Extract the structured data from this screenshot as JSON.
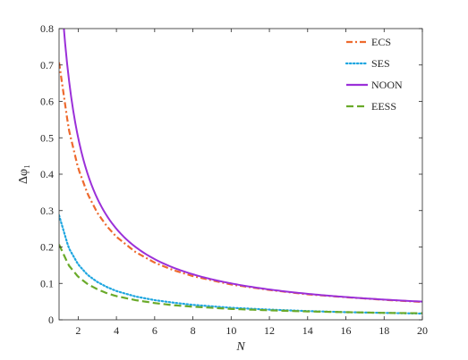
{
  "chart_data": {
    "type": "line",
    "xlabel": "N",
    "ylabel": "Δφ₁",
    "xlim": [
      1,
      20
    ],
    "ylim": [
      0,
      0.8
    ],
    "xticks": [
      2,
      4,
      6,
      8,
      10,
      12,
      14,
      16,
      18,
      20
    ],
    "yticks": [
      0,
      0.1,
      0.2,
      0.3,
      0.4,
      0.5,
      0.6,
      0.7,
      0.8
    ],
    "grid": false,
    "legend": "top-right",
    "series": [
      {
        "name": "ECS",
        "color": "#EE6A2E",
        "style": "dash-dot",
        "x": [
          1,
          1.5,
          2,
          2.5,
          3,
          3.5,
          4,
          5,
          6,
          7,
          8,
          10,
          12,
          14,
          16,
          18,
          20
        ],
        "y": [
          0.707,
          0.525,
          0.416,
          0.345,
          0.294,
          0.257,
          0.228,
          0.186,
          0.157,
          0.136,
          0.12,
          0.097,
          0.082,
          0.07,
          0.062,
          0.055,
          0.049
        ]
      },
      {
        "name": "SES",
        "color": "#1FA6E0",
        "style": "dotted",
        "x": [
          1,
          1.5,
          2,
          2.5,
          3,
          3.5,
          4,
          5,
          6,
          7,
          8,
          10,
          12,
          14,
          16,
          18,
          20
        ],
        "y": [
          0.287,
          0.198,
          0.152,
          0.123,
          0.104,
          0.09,
          0.079,
          0.064,
          0.054,
          0.047,
          0.041,
          0.033,
          0.028,
          0.024,
          0.021,
          0.019,
          0.017
        ]
      },
      {
        "name": "NOON",
        "color": "#9B30D9",
        "style": "solid",
        "x": [
          1,
          1.5,
          2,
          2.5,
          3,
          3.5,
          4,
          5,
          6,
          7,
          8,
          10,
          12,
          14,
          16,
          18,
          20
        ],
        "y": [
          1.0,
          0.667,
          0.5,
          0.4,
          0.333,
          0.286,
          0.25,
          0.2,
          0.167,
          0.143,
          0.125,
          0.1,
          0.083,
          0.071,
          0.0625,
          0.056,
          0.05
        ]
      },
      {
        "name": "EESS",
        "color": "#6AAA2A",
        "style": "dashed",
        "x": [
          1,
          1.5,
          2,
          2.5,
          3,
          3.5,
          4,
          5,
          6,
          7,
          8,
          10,
          12,
          14,
          16,
          18,
          20
        ],
        "y": [
          0.207,
          0.15,
          0.118,
          0.098,
          0.084,
          0.073,
          0.065,
          0.054,
          0.046,
          0.04,
          0.036,
          0.03,
          0.026,
          0.023,
          0.021,
          0.019,
          0.018
        ]
      }
    ]
  }
}
